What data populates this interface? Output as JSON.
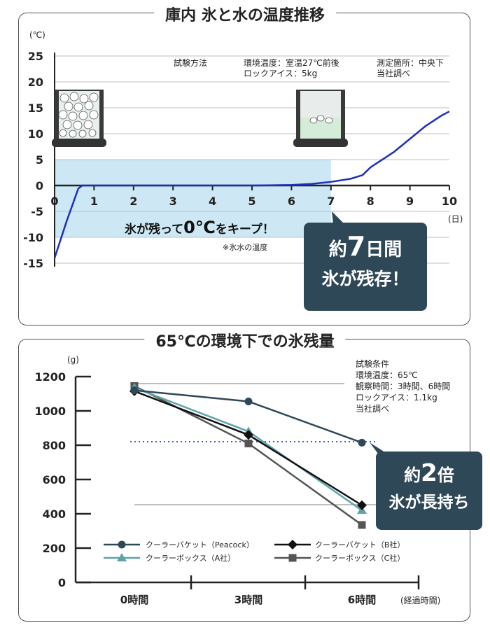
{
  "top": {
    "title": "庫内 氷と水の温度推移",
    "notes": {
      "method": "試験方法",
      "env": "環境温度：室温27℃前後",
      "rock": "ロックアイス：5kg",
      "point": "測定箇所：中央下",
      "survey": "当社調べ",
      "sub": "※氷水の温度"
    },
    "keep_text_a": "氷が残って",
    "keep_text_big": "0℃",
    "keep_text_b": "をキープ！",
    "callout_line1_a": "約",
    "callout_line1_big": "7",
    "callout_line1_b": "日間",
    "callout_line2": "氷が残存！",
    "icons": [
      "ice-bucket-icon",
      "melted-water-bucket-icon"
    ]
  },
  "bottom": {
    "title": "65℃の環境下での氷残量",
    "notes": {
      "head": "試験条件",
      "env": "環境温度：65℃",
      "time": "観察時間：3時間、6時間",
      "rock": "ロックアイス：1.1kg",
      "survey": "当社調べ"
    },
    "callout_line1_a": "約",
    "callout_line1_big": "2",
    "callout_line1_b": "倍",
    "callout_line2": "氷が長持ち"
  },
  "colors": {
    "line_blue": "#1f2fbf",
    "band_fill": "#cde8f4",
    "callout_bg": "#2f4858",
    "peacock": "#2f4858",
    "b_company": "#111111",
    "a_company": "#5fa3a8",
    "c_company": "#555555"
  },
  "chart_data": [
    {
      "type": "line",
      "title": "庫内 氷と水の温度推移",
      "ylabel": "(℃)",
      "xlabel": "(日)",
      "xlim": [
        0,
        10
      ],
      "ylim": [
        -15,
        25
      ],
      "yticks": [
        "25",
        "20",
        "15",
        "10",
        "5",
        "0",
        "-5",
        "-10",
        "-15"
      ],
      "xticks": [
        "0",
        "1",
        "2",
        "3",
        "4",
        "5",
        "6",
        "7",
        "8",
        "9",
        "10"
      ],
      "shaded_band": {
        "x": [
          0,
          7
        ],
        "y": [
          -10,
          5
        ]
      },
      "series": [
        {
          "x": [
            0,
            0.3,
            0.6,
            0.7,
            1,
            2,
            3,
            4,
            5,
            6,
            6.5,
            7,
            7.5,
            7.8,
            8.0,
            8.2,
            8.6,
            9.0,
            9.4,
            9.8,
            10
          ],
          "y": [
            -14,
            -7,
            -0.6,
            0,
            0,
            0,
            0,
            0,
            0,
            0.1,
            0.3,
            0.7,
            1.3,
            2,
            3.5,
            4.5,
            6.5,
            9,
            11.5,
            13.5,
            14.3
          ]
        }
      ]
    },
    {
      "type": "line",
      "title": "65℃の環境下での氷残量",
      "ylabel": "(g)",
      "xlabel": "(経過時間)",
      "categories": [
        "0時間",
        "3時間",
        "6時間"
      ],
      "ylim": [
        0,
        1200
      ],
      "yticks": [
        "1200",
        "1000",
        "800",
        "600",
        "400",
        "200",
        "0"
      ],
      "reference_lines": [
        820,
        450
      ],
      "series": [
        {
          "name": "クーラーバケット（Peacock）",
          "values": [
            1120,
            1055,
            815
          ]
        },
        {
          "name": "クーラーバケット（B社）",
          "values": [
            1115,
            860,
            450
          ]
        },
        {
          "name": "クーラーボックス（A社）",
          "values": [
            1135,
            880,
            420
          ]
        },
        {
          "name": "クーラーボックス（C社）",
          "values": [
            1145,
            810,
            335
          ]
        }
      ]
    }
  ]
}
